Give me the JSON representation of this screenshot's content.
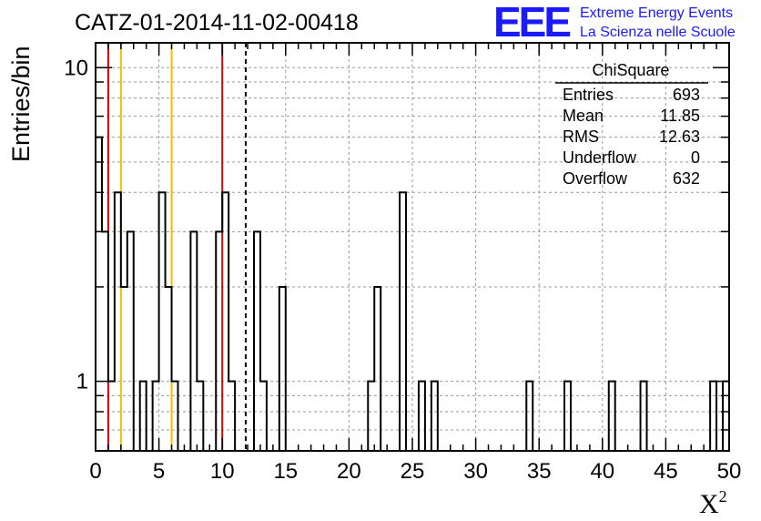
{
  "chart_data": {
    "type": "histogram",
    "title": "CATZ-01-2014-11-02-00418",
    "xlabel": "X",
    "xlabel_sup": "2",
    "ylabel": "Entries/bin",
    "xlim": [
      0,
      50
    ],
    "ylim": [
      0.6,
      12
    ],
    "yscale": "log",
    "grid": true,
    "bin_width": 0.5,
    "x_ticks": [
      0,
      5,
      10,
      15,
      20,
      25,
      30,
      35,
      40,
      45,
      50
    ],
    "y_ticks": [
      1,
      10
    ],
    "bins": [
      {
        "x": 0.0,
        "y": 6
      },
      {
        "x": 0.5,
        "y": 3
      },
      {
        "x": 1.0,
        "y": 1
      },
      {
        "x": 1.5,
        "y": 4
      },
      {
        "x": 2.0,
        "y": 2
      },
      {
        "x": 2.5,
        "y": 3
      },
      {
        "x": 3.5,
        "y": 1
      },
      {
        "x": 4.5,
        "y": 1
      },
      {
        "x": 5.0,
        "y": 4
      },
      {
        "x": 5.5,
        "y": 2
      },
      {
        "x": 6.0,
        "y": 1
      },
      {
        "x": 7.5,
        "y": 3
      },
      {
        "x": 8.0,
        "y": 1
      },
      {
        "x": 9.5,
        "y": 3
      },
      {
        "x": 10.0,
        "y": 4
      },
      {
        "x": 10.5,
        "y": 1
      },
      {
        "x": 12.5,
        "y": 3
      },
      {
        "x": 13.0,
        "y": 1
      },
      {
        "x": 14.5,
        "y": 2
      },
      {
        "x": 21.5,
        "y": 1
      },
      {
        "x": 22.0,
        "y": 2
      },
      {
        "x": 24.0,
        "y": 4
      },
      {
        "x": 25.5,
        "y": 1
      },
      {
        "x": 26.5,
        "y": 1
      },
      {
        "x": 34.0,
        "y": 1
      },
      {
        "x": 37.0,
        "y": 1
      },
      {
        "x": 40.5,
        "y": 1
      },
      {
        "x": 43.0,
        "y": 1
      },
      {
        "x": 48.5,
        "y": 1
      },
      {
        "x": 49.5,
        "y": 1
      }
    ],
    "vertical_lines": [
      {
        "x": 1.0,
        "color": "#e00000",
        "style": "solid"
      },
      {
        "x": 2.0,
        "color": "#f0c000",
        "style": "solid"
      },
      {
        "x": 6.0,
        "color": "#f0c000",
        "style": "solid"
      },
      {
        "x": 10.0,
        "color": "#e00000",
        "style": "solid"
      },
      {
        "x": 11.85,
        "color": "#000000",
        "style": "dashed"
      }
    ],
    "stats_box": {
      "title": "ChiSquare",
      "rows": [
        {
          "label": "Entries",
          "value": "693"
        },
        {
          "label": "Mean",
          "value": "11.85"
        },
        {
          "label": "RMS",
          "value": "12.63"
        },
        {
          "label": "Underflow",
          "value": "0"
        },
        {
          "label": "Overflow",
          "value": "632"
        }
      ]
    }
  },
  "logo": {
    "mark": "EEE",
    "line1": "Extreme Energy Events",
    "line2": "La Scienza nelle Scuole"
  },
  "colors": {
    "logo": "#1a1aff",
    "grid": "#9a9a9a",
    "histogram": "#000000"
  }
}
